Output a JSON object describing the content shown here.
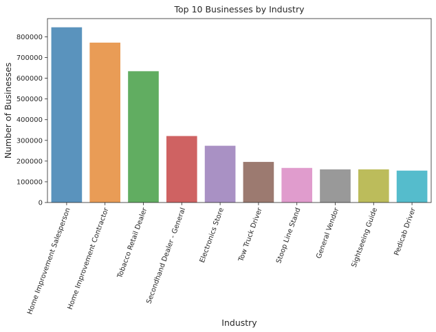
{
  "chart_data": {
    "type": "bar",
    "title": "Top 10 Businesses by Industry",
    "xlabel": "Industry",
    "ylabel": "Number of Businesses",
    "categories": [
      "Home Improvement Salesperson",
      "Home Improvement Contractor",
      "Tobacco Retail Dealer",
      "Secondhand Dealer - General",
      "Electronics Store",
      "Tow Truck Driver",
      "Stoop Line Stand",
      "General Vendor",
      "Sightseeing Guide",
      "Pedicab Driver"
    ],
    "values": [
      846000,
      772000,
      634000,
      321000,
      274000,
      196000,
      167000,
      160000,
      160000,
      154000
    ],
    "colors": [
      "#5a93bd",
      "#e99c56",
      "#61ad61",
      "#cf6262",
      "#a991c4",
      "#9c7a70",
      "#e09ccd",
      "#999999",
      "#bcbc5b",
      "#55bccc"
    ],
    "ylim": [
      0,
      888000
    ],
    "yticks": [
      0,
      100000,
      200000,
      300000,
      400000,
      500000,
      600000,
      700000,
      800000
    ],
    "ytick_labels": [
      "0",
      "100000",
      "200000",
      "300000",
      "400000",
      "500000",
      "600000",
      "700000",
      "800000"
    ],
    "grid": false,
    "legend": "none"
  }
}
